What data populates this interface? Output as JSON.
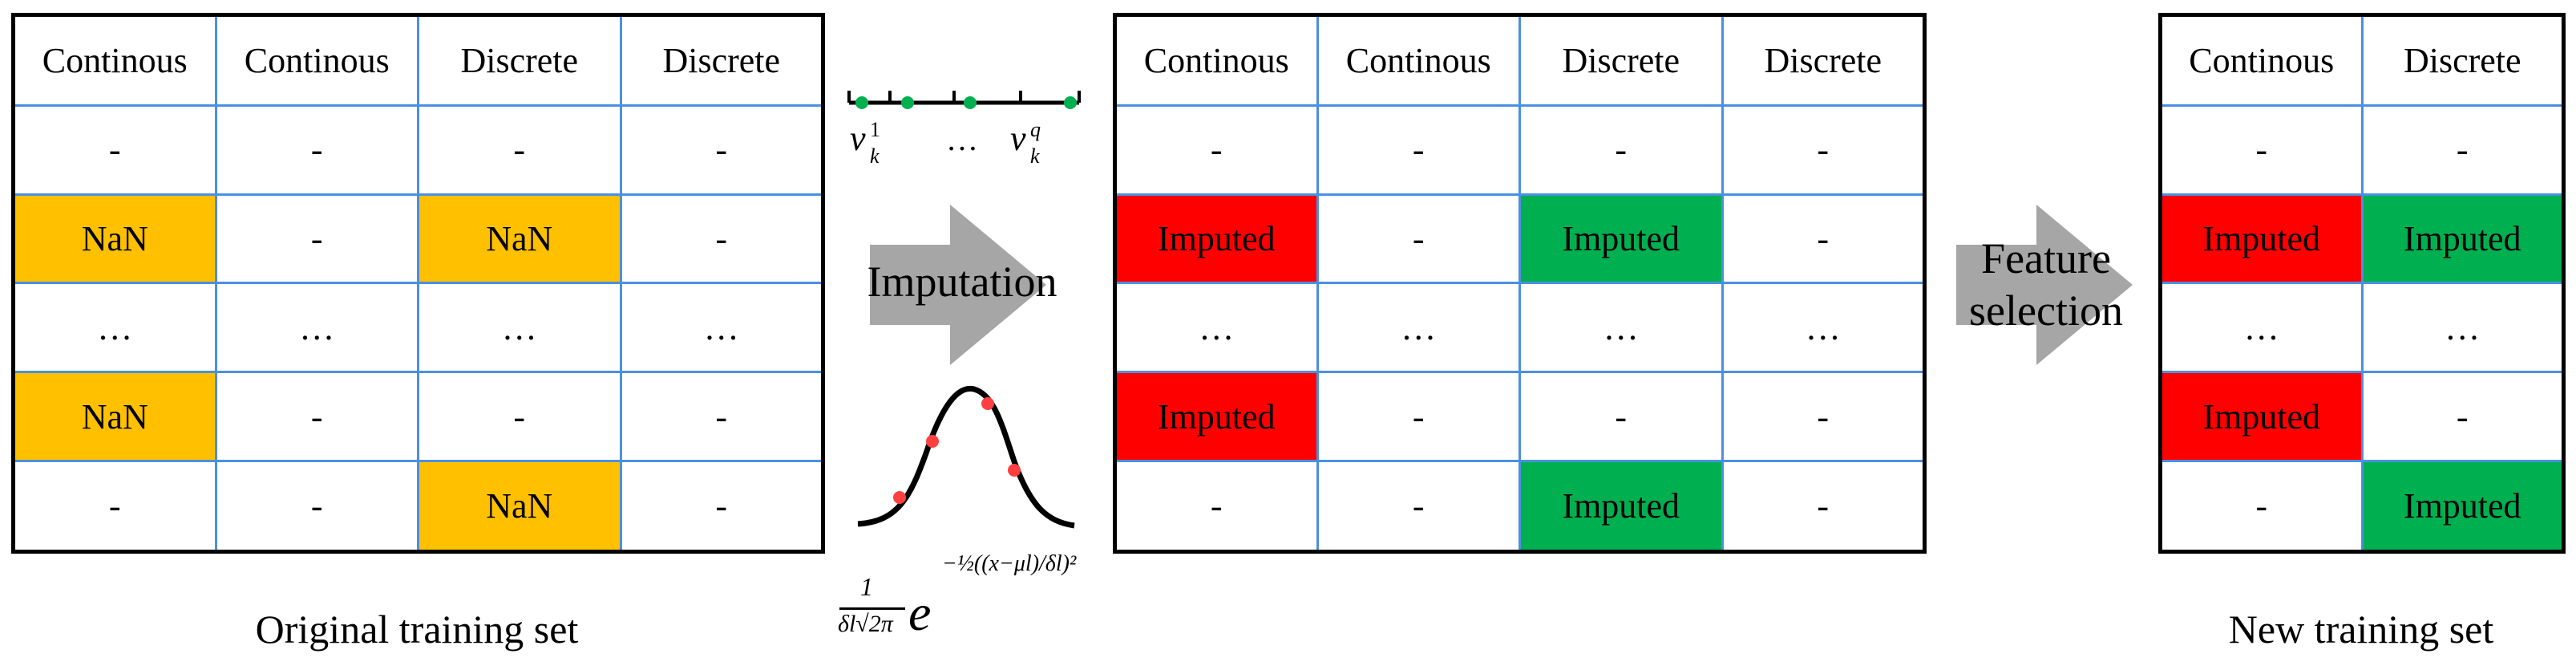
{
  "original": {
    "caption": "Original training set",
    "headers": [
      "Continous",
      "Continous",
      "Discrete",
      "Discrete"
    ],
    "rows": [
      [
        {
          "t": "-",
          "s": ""
        },
        {
          "t": "-",
          "s": ""
        },
        {
          "t": "-",
          "s": ""
        },
        {
          "t": "-",
          "s": ""
        }
      ],
      [
        {
          "t": "NaN",
          "s": "nan"
        },
        {
          "t": "-",
          "s": ""
        },
        {
          "t": "NaN",
          "s": "nan"
        },
        {
          "t": "-",
          "s": ""
        }
      ],
      [
        {
          "t": "…",
          "s": ""
        },
        {
          "t": "…",
          "s": ""
        },
        {
          "t": "…",
          "s": ""
        },
        {
          "t": "…",
          "s": ""
        }
      ],
      [
        {
          "t": "NaN",
          "s": "nan"
        },
        {
          "t": "-",
          "s": ""
        },
        {
          "t": "-",
          "s": ""
        },
        {
          "t": "-",
          "s": ""
        }
      ],
      [
        {
          "t": "-",
          "s": ""
        },
        {
          "t": "-",
          "s": ""
        },
        {
          "t": "NaN",
          "s": "nan"
        },
        {
          "t": "-",
          "s": ""
        }
      ]
    ]
  },
  "imputed": {
    "headers": [
      "Continous",
      "Continous",
      "Discrete",
      "Discrete"
    ],
    "rows": [
      [
        {
          "t": "-",
          "s": ""
        },
        {
          "t": "-",
          "s": ""
        },
        {
          "t": "-",
          "s": ""
        },
        {
          "t": "-",
          "s": ""
        }
      ],
      [
        {
          "t": "Imputed",
          "s": "red"
        },
        {
          "t": "-",
          "s": ""
        },
        {
          "t": "Imputed",
          "s": "grn"
        },
        {
          "t": "-",
          "s": ""
        }
      ],
      [
        {
          "t": "…",
          "s": ""
        },
        {
          "t": "…",
          "s": ""
        },
        {
          "t": "…",
          "s": ""
        },
        {
          "t": "…",
          "s": ""
        }
      ],
      [
        {
          "t": "Imputed",
          "s": "red"
        },
        {
          "t": "-",
          "s": ""
        },
        {
          "t": "-",
          "s": ""
        },
        {
          "t": "-",
          "s": ""
        }
      ],
      [
        {
          "t": "-",
          "s": ""
        },
        {
          "t": "-",
          "s": ""
        },
        {
          "t": "Imputed",
          "s": "grn"
        },
        {
          "t": "-",
          "s": ""
        }
      ]
    ]
  },
  "selected": {
    "caption": "New training set",
    "headers": [
      "Continous",
      "Discrete"
    ],
    "rows": [
      [
        {
          "t": "-",
          "s": ""
        },
        {
          "t": "-",
          "s": ""
        }
      ],
      [
        {
          "t": "Imputed",
          "s": "red"
        },
        {
          "t": "Imputed",
          "s": "grn"
        }
      ],
      [
        {
          "t": "…",
          "s": ""
        },
        {
          "t": "…",
          "s": ""
        }
      ],
      [
        {
          "t": "Imputed",
          "s": "red"
        },
        {
          "t": "-",
          "s": ""
        }
      ],
      [
        {
          "t": "-",
          "s": ""
        },
        {
          "t": "Imputed",
          "s": "grn"
        }
      ]
    ]
  },
  "imputation_label": "Imputation",
  "feature_selection_label": "Feature selection",
  "discrete_axis": {
    "v_first": "v",
    "sub": "k",
    "sup_first": "1",
    "sup_last": "q",
    "dots": "…"
  },
  "gaussian_formula": {
    "numerator": "1",
    "denominator": "δl√2π",
    "e": "e",
    "exponent": "−½((x−μl)/δl)²"
  },
  "colors": {
    "nan": "#ffc000",
    "continuous_imputed": "#ff0000",
    "discrete_imputed": "#00b050",
    "cell_border": "#4a90e2",
    "arrow": "#a6a6a6"
  }
}
